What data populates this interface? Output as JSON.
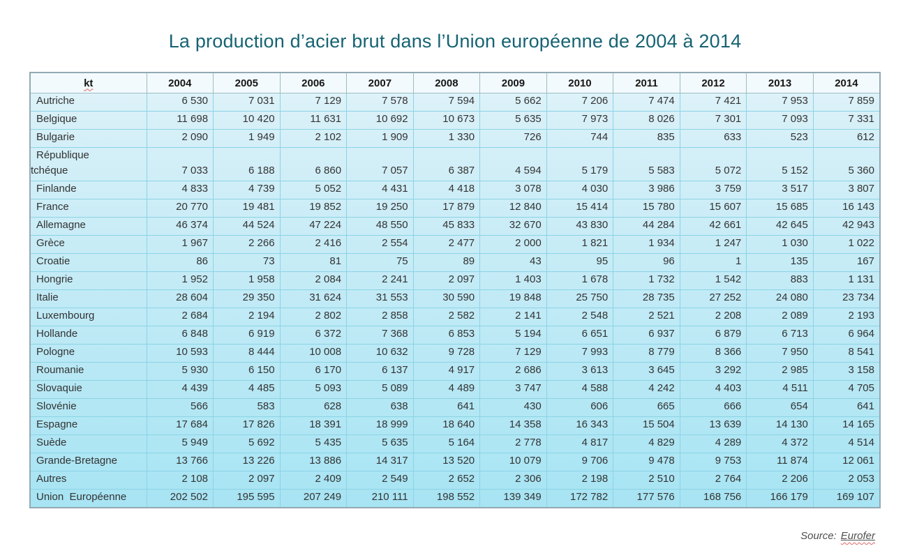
{
  "title": {
    "text": "La production d’acier brut dans l’Union européenne de 2004 à 2014"
  },
  "table": {
    "unit_header": "kt",
    "year_columns": [
      "2004",
      "2005",
      "2006",
      "2007",
      "2008",
      "2009",
      "2010",
      "2011",
      "2012",
      "2013",
      "2014"
    ],
    "rows": [
      {
        "label": "Autriche",
        "values": [
          "6 530",
          "7 031",
          "7 129",
          "7 578",
          "7 594",
          "5 662",
          "7 206",
          "7 474",
          "7 421",
          "7 953",
          "7 859"
        ]
      },
      {
        "label": "Belgique",
        "values": [
          "11 698",
          "10 420",
          "11 631",
          "10 692",
          "10 673",
          "5 635",
          "7 973",
          "8 026",
          "7 301",
          "7 093",
          "7 331"
        ]
      },
      {
        "label": "Bulgarie",
        "values": [
          "2 090",
          "1 949",
          "2 102",
          "1 909",
          "1 330",
          "726",
          "744",
          "835",
          "633",
          "523",
          "612"
        ]
      },
      {
        "label": "République\ntchéque",
        "values": [
          "7 033",
          "6 188",
          "6 860",
          "7 057",
          "6 387",
          "4 594",
          "5 179",
          "5 583",
          "5 072",
          "5 152",
          "5 360"
        ]
      },
      {
        "label": "Finlande",
        "values": [
          "4 833",
          "4 739",
          "5 052",
          "4 431",
          "4 418",
          "3 078",
          "4 030",
          "3 986",
          "3 759",
          "3 517",
          "3 807"
        ]
      },
      {
        "label": "France",
        "values": [
          "20 770",
          "19 481",
          "19 852",
          "19 250",
          "17 879",
          "12 840",
          "15 414",
          "15 780",
          "15 607",
          "15 685",
          "16 143"
        ]
      },
      {
        "label": "Allemagne",
        "values": [
          "46 374",
          "44 524",
          "47 224",
          "48 550",
          "45 833",
          "32 670",
          "43 830",
          "44 284",
          "42 661",
          "42 645",
          "42 943"
        ]
      },
      {
        "label": "Grèce",
        "values": [
          "1 967",
          "2 266",
          "2 416",
          "2 554",
          "2 477",
          "2 000",
          "1 821",
          "1 934",
          "1 247",
          "1 030",
          "1 022"
        ]
      },
      {
        "label": "Croatie",
        "values": [
          "86",
          "73",
          "81",
          "75",
          "89",
          "43",
          "95",
          "96",
          "1",
          "135",
          "167"
        ]
      },
      {
        "label": "Hongrie",
        "values": [
          "1 952",
          "1 958",
          "2 084",
          "2 241",
          "2 097",
          "1 403",
          "1 678",
          "1 732",
          "1 542",
          "883",
          "1 131"
        ]
      },
      {
        "label": "Italie",
        "values": [
          "28 604",
          "29 350",
          "31 624",
          "31 553",
          "30 590",
          "19 848",
          "25 750",
          "28 735",
          "27 252",
          "24 080",
          "23 734"
        ]
      },
      {
        "label": "Luxembourg",
        "values": [
          "2 684",
          "2 194",
          "2 802",
          "2 858",
          "2 582",
          "2 141",
          "2 548",
          "2 521",
          "2 208",
          "2 089",
          "2 193"
        ]
      },
      {
        "label": "Hollande",
        "values": [
          "6 848",
          "6 919",
          "6 372",
          "7 368",
          "6 853",
          "5 194",
          "6 651",
          "6 937",
          "6 879",
          "6 713",
          "6 964"
        ]
      },
      {
        "label": "Pologne",
        "values": [
          "10 593",
          "8 444",
          "10 008",
          "10 632",
          "9 728",
          "7 129",
          "7 993",
          "8 779",
          "8 366",
          "7 950",
          "8 541"
        ]
      },
      {
        "label": "Roumanie",
        "values": [
          "5 930",
          "6 150",
          "6 170",
          "6 137",
          "4 917",
          "2 686",
          "3 613",
          "3 645",
          "3 292",
          "2 985",
          "3 158"
        ]
      },
      {
        "label": "Slovaquie",
        "values": [
          "4 439",
          "4 485",
          "5 093",
          "5 089",
          "4 489",
          "3 747",
          "4 588",
          "4 242",
          "4 403",
          "4 511",
          "4 705"
        ]
      },
      {
        "label": "Slovénie",
        "values": [
          "566",
          "583",
          "628",
          "638",
          "641",
          "430",
          "606",
          "665",
          "666",
          "654",
          "641"
        ]
      },
      {
        "label": "Espagne",
        "values": [
          "17 684",
          "17 826",
          "18 391",
          "18 999",
          "18 640",
          "14 358",
          "16 343",
          "15 504",
          "13 639",
          "14 130",
          "14 165"
        ]
      },
      {
        "label": "Suède",
        "values": [
          "5 949",
          "5 692",
          "5 435",
          "5 635",
          "5 164",
          "2 778",
          "4 817",
          "4 829",
          "4 289",
          "4 372",
          "4 514"
        ]
      },
      {
        "label": "Grande-Bretagne",
        "values": [
          "13 766",
          "13 226",
          "13 886",
          "14 317",
          "13 520",
          "10 079",
          "9 706",
          "9 478",
          "9 753",
          "11 874",
          "12 061"
        ]
      },
      {
        "label": "Autres",
        "values": [
          "2 108",
          "2 097",
          "2 409",
          "2 549",
          "2 652",
          "2 306",
          "2 198",
          "2 510",
          "2 764",
          "2 206",
          "2 053"
        ]
      },
      {
        "label": "Union  Européenne",
        "values": [
          "202 502",
          "195 595",
          "207 249",
          "210 111",
          "198 552",
          "139 349",
          "172 782",
          "177 576",
          "168 756",
          "166 179",
          "169 107"
        ]
      }
    ]
  },
  "source": {
    "prefix": "Source:",
    "reference": "Eurofer"
  },
  "colors": {
    "title_color": "#166373",
    "table_top": "#e3f4fa",
    "table_bottom": "#a7e4f3",
    "header_bg": "#f2fafd",
    "header_border": "#9fbac4",
    "inner_border": "#8bd3e6",
    "outer_border": "#93a9b3",
    "squiggle": "#e06666"
  }
}
